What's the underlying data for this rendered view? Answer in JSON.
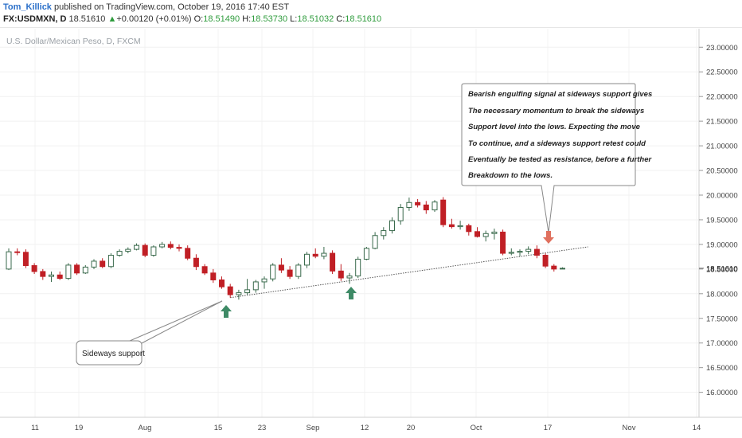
{
  "header": {
    "author": "Tom_Killick",
    "published_text": "published on TradingView.com, October 19, 2016 17:40 EST",
    "symbol": "FX:USDMXN, D",
    "price": "18.51610",
    "change_arrow": "▲",
    "change": "+0.00120 (+0.01%)",
    "o_label": "O:",
    "o_value": "18.51490",
    "h_label": "H:",
    "h_value": "18.53730",
    "l_label": "L:",
    "l_value": "18.51032",
    "c_label": "C:",
    "c_value": "18.51610"
  },
  "chart_data": {
    "type": "candlestick",
    "title": "U.S. Dollar/Mexican Peso, D, FXCM",
    "ylim": [
      15.8,
      23.15
    ],
    "y_ticks": [
      "16.00000",
      "16.50000",
      "17.00000",
      "17.50000",
      "18.00000",
      "18.50000",
      "19.00000",
      "19.50000",
      "20.00000",
      "20.50000",
      "21.00000",
      "21.50000",
      "22.00000",
      "22.50000",
      "23.00000"
    ],
    "last_price_label": "18.51610",
    "x_tick_labels": [
      "11",
      "19",
      "Aug",
      "15",
      "23",
      "Sep",
      "12",
      "20",
      "Oct",
      "17",
      "Nov",
      "14"
    ],
    "colors": {
      "up": "#ffffff",
      "down": "#c01f25",
      "outline": "#3a6a4c",
      "arrow_up": "#3e8a66",
      "arrow_down": "#e0705e"
    },
    "candles": [
      {
        "o": 18.5,
        "h": 18.92,
        "l": 18.48,
        "c": 18.85
      },
      {
        "o": 18.85,
        "h": 18.92,
        "l": 18.78,
        "c": 18.84
      },
      {
        "o": 18.84,
        "h": 18.9,
        "l": 18.52,
        "c": 18.57
      },
      {
        "o": 18.57,
        "h": 18.62,
        "l": 18.4,
        "c": 18.45
      },
      {
        "o": 18.45,
        "h": 18.5,
        "l": 18.28,
        "c": 18.35
      },
      {
        "o": 18.35,
        "h": 18.45,
        "l": 18.24,
        "c": 18.38
      },
      {
        "o": 18.38,
        "h": 18.45,
        "l": 18.28,
        "c": 18.31
      },
      {
        "o": 18.31,
        "h": 18.62,
        "l": 18.28,
        "c": 18.58
      },
      {
        "o": 18.58,
        "h": 18.62,
        "l": 18.38,
        "c": 18.42
      },
      {
        "o": 18.42,
        "h": 18.58,
        "l": 18.4,
        "c": 18.54
      },
      {
        "o": 18.54,
        "h": 18.7,
        "l": 18.5,
        "c": 18.66
      },
      {
        "o": 18.66,
        "h": 18.72,
        "l": 18.52,
        "c": 18.55
      },
      {
        "o": 18.55,
        "h": 18.82,
        "l": 18.52,
        "c": 18.78
      },
      {
        "o": 18.78,
        "h": 18.9,
        "l": 18.75,
        "c": 18.86
      },
      {
        "o": 18.86,
        "h": 18.94,
        "l": 18.82,
        "c": 18.9
      },
      {
        "o": 18.9,
        "h": 19.02,
        "l": 18.88,
        "c": 18.98
      },
      {
        "o": 18.98,
        "h": 19.02,
        "l": 18.74,
        "c": 18.78
      },
      {
        "o": 18.78,
        "h": 18.98,
        "l": 18.75,
        "c": 18.95
      },
      {
        "o": 18.95,
        "h": 19.05,
        "l": 18.92,
        "c": 19.0
      },
      {
        "o": 19.0,
        "h": 19.06,
        "l": 18.9,
        "c": 18.94
      },
      {
        "o": 18.94,
        "h": 19.0,
        "l": 18.86,
        "c": 18.92
      },
      {
        "o": 18.92,
        "h": 18.98,
        "l": 18.68,
        "c": 18.72
      },
      {
        "o": 18.72,
        "h": 18.8,
        "l": 18.48,
        "c": 18.55
      },
      {
        "o": 18.55,
        "h": 18.6,
        "l": 18.38,
        "c": 18.42
      },
      {
        "o": 18.42,
        "h": 18.5,
        "l": 18.22,
        "c": 18.28
      },
      {
        "o": 18.28,
        "h": 18.35,
        "l": 18.1,
        "c": 18.14
      },
      {
        "o": 18.14,
        "h": 18.2,
        "l": 17.92,
        "c": 17.98
      },
      {
        "o": 17.98,
        "h": 18.08,
        "l": 17.88,
        "c": 18.02
      },
      {
        "o": 18.02,
        "h": 18.3,
        "l": 17.98,
        "c": 18.08
      },
      {
        "o": 18.08,
        "h": 18.28,
        "l": 18.02,
        "c": 18.24
      },
      {
        "o": 18.24,
        "h": 18.35,
        "l": 18.1,
        "c": 18.3
      },
      {
        "o": 18.3,
        "h": 18.62,
        "l": 18.25,
        "c": 18.58
      },
      {
        "o": 18.58,
        "h": 18.72,
        "l": 18.42,
        "c": 18.48
      },
      {
        "o": 18.48,
        "h": 18.56,
        "l": 18.3,
        "c": 18.35
      },
      {
        "o": 18.35,
        "h": 18.62,
        "l": 18.3,
        "c": 18.58
      },
      {
        "o": 18.58,
        "h": 18.85,
        "l": 18.52,
        "c": 18.8
      },
      {
        "o": 18.8,
        "h": 18.92,
        "l": 18.72,
        "c": 18.76
      },
      {
        "o": 18.76,
        "h": 18.95,
        "l": 18.7,
        "c": 18.82
      },
      {
        "o": 18.82,
        "h": 18.88,
        "l": 18.4,
        "c": 18.46
      },
      {
        "o": 18.46,
        "h": 18.6,
        "l": 18.26,
        "c": 18.32
      },
      {
        "o": 18.32,
        "h": 18.42,
        "l": 18.2,
        "c": 18.36
      },
      {
        "o": 18.36,
        "h": 18.75,
        "l": 18.32,
        "c": 18.7
      },
      {
        "o": 18.7,
        "h": 18.95,
        "l": 18.68,
        "c": 18.92
      },
      {
        "o": 18.92,
        "h": 19.25,
        "l": 18.9,
        "c": 19.18
      },
      {
        "o": 19.18,
        "h": 19.35,
        "l": 19.1,
        "c": 19.28
      },
      {
        "o": 19.28,
        "h": 19.55,
        "l": 19.22,
        "c": 19.48
      },
      {
        "o": 19.48,
        "h": 19.82,
        "l": 19.4,
        "c": 19.75
      },
      {
        "o": 19.75,
        "h": 19.95,
        "l": 19.68,
        "c": 19.85
      },
      {
        "o": 19.85,
        "h": 19.92,
        "l": 19.75,
        "c": 19.8
      },
      {
        "o": 19.8,
        "h": 19.88,
        "l": 19.62,
        "c": 19.7
      },
      {
        "o": 19.7,
        "h": 19.9,
        "l": 19.66,
        "c": 19.86
      },
      {
        "o": 19.9,
        "h": 19.96,
        "l": 19.35,
        "c": 19.4
      },
      {
        "o": 19.4,
        "h": 19.52,
        "l": 19.32,
        "c": 19.36
      },
      {
        "o": 19.36,
        "h": 19.48,
        "l": 19.3,
        "c": 19.38
      },
      {
        "o": 19.38,
        "h": 19.42,
        "l": 19.18,
        "c": 19.26
      },
      {
        "o": 19.26,
        "h": 19.35,
        "l": 19.14,
        "c": 19.16
      },
      {
        "o": 19.16,
        "h": 19.28,
        "l": 19.06,
        "c": 19.22
      },
      {
        "o": 19.22,
        "h": 19.32,
        "l": 19.1,
        "c": 19.25
      },
      {
        "o": 19.25,
        "h": 19.3,
        "l": 18.78,
        "c": 18.82
      },
      {
        "o": 18.82,
        "h": 18.92,
        "l": 18.78,
        "c": 18.84
      },
      {
        "o": 18.84,
        "h": 18.9,
        "l": 18.76,
        "c": 18.86
      },
      {
        "o": 18.86,
        "h": 18.96,
        "l": 18.8,
        "c": 18.9
      },
      {
        "o": 18.9,
        "h": 18.98,
        "l": 18.72,
        "c": 18.78
      },
      {
        "o": 18.78,
        "h": 18.82,
        "l": 18.52,
        "c": 18.56
      },
      {
        "o": 18.56,
        "h": 18.6,
        "l": 18.45,
        "c": 18.5
      },
      {
        "o": 18.515,
        "h": 18.537,
        "l": 18.51,
        "c": 18.516
      }
    ],
    "support_line": {
      "start_index": 26,
      "start_price": 17.92,
      "end_index": 68,
      "end_price": 18.95
    },
    "annotations": {
      "main_note": [
        "Bearish engulfing signal at sideways support gives",
        "The necessary momentum to break the sideways",
        "Support level into the lows. Expecting the move",
        "To continue, and a sideways support retest could",
        "Eventually be tested as resistance, before a further",
        "Breakdown to the lows."
      ],
      "support_note": "Sideways support"
    }
  }
}
